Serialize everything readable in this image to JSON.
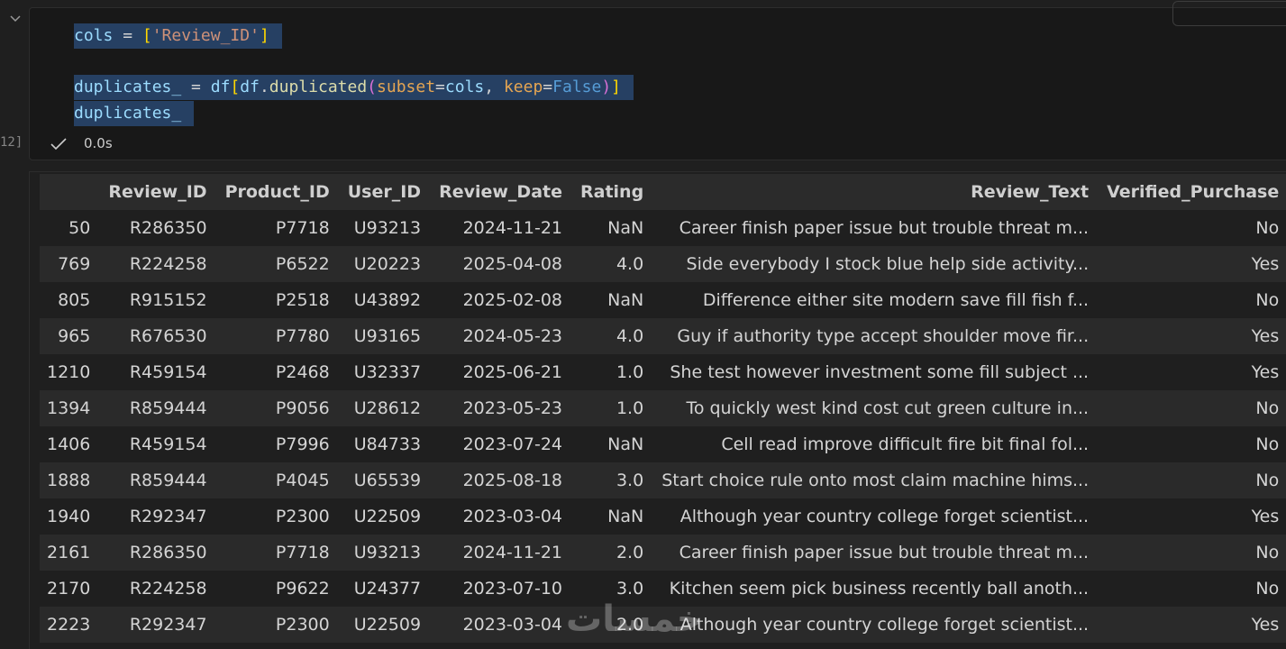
{
  "cell": {
    "execution_count": "12]",
    "duration": "0.0s",
    "code_lines": [
      [
        {
          "text": "cols",
          "color": "#9cdcfe"
        },
        {
          "text": " = ",
          "color": "#d4d4d4"
        },
        {
          "text": "[",
          "color": "#ffd700"
        },
        {
          "text": "'Review_ID'",
          "color": "#ce9178"
        },
        {
          "text": "]",
          "color": "#ffd700"
        }
      ],
      [],
      [
        {
          "text": "duplicates_",
          "color": "#9cdcfe"
        },
        {
          "text": " = ",
          "color": "#d4d4d4"
        },
        {
          "text": "df",
          "color": "#9cdcfe"
        },
        {
          "text": "[",
          "color": "#ffd700"
        },
        {
          "text": "df",
          "color": "#9cdcfe"
        },
        {
          "text": ".",
          "color": "#d4d4d4"
        },
        {
          "text": "duplicated",
          "color": "#dcdcaa"
        },
        {
          "text": "(",
          "color": "#da70d6"
        },
        {
          "text": "subset",
          "color": "#e5a552"
        },
        {
          "text": "=",
          "color": "#d4d4d4"
        },
        {
          "text": "cols",
          "color": "#9cdcfe"
        },
        {
          "text": ", ",
          "color": "#d4d4d4"
        },
        {
          "text": "keep",
          "color": "#e5a552"
        },
        {
          "text": "=",
          "color": "#d4d4d4"
        },
        {
          "text": "False",
          "color": "#569cd6"
        },
        {
          "text": ")",
          "color": "#da70d6"
        },
        {
          "text": "]",
          "color": "#ffd700"
        }
      ],
      [
        {
          "text": "duplicates_",
          "color": "#9cdcfe"
        }
      ]
    ]
  },
  "table": {
    "header": [
      "",
      "Review_ID",
      "Product_ID",
      "User_ID",
      "Review_Date",
      "Rating",
      "Review_Text",
      "Verified_Purchase"
    ],
    "rows": [
      [
        "50",
        "R286350",
        "P7718",
        "U93213",
        "2024-11-21",
        "NaN",
        "Career finish paper issue but trouble threat m...",
        "No"
      ],
      [
        "769",
        "R224258",
        "P6522",
        "U20223",
        "2025-04-08",
        "4.0",
        "Side everybody I stock blue help side activity...",
        "Yes"
      ],
      [
        "805",
        "R915152",
        "P2518",
        "U43892",
        "2025-02-08",
        "NaN",
        "Difference either site modern save fill fish f...",
        "No"
      ],
      [
        "965",
        "R676530",
        "P7780",
        "U93165",
        "2024-05-23",
        "4.0",
        "Guy if authority type accept shoulder move fir...",
        "Yes"
      ],
      [
        "1210",
        "R459154",
        "P2468",
        "U32337",
        "2025-06-21",
        "1.0",
        "She test however investment some fill subject ...",
        "Yes"
      ],
      [
        "1394",
        "R859444",
        "P9056",
        "U28612",
        "2023-05-23",
        "1.0",
        "To quickly west kind cost cut green culture in...",
        "No"
      ],
      [
        "1406",
        "R459154",
        "P7996",
        "U84733",
        "2023-07-24",
        "NaN",
        "Cell read improve difficult fire bit final fol...",
        "No"
      ],
      [
        "1888",
        "R859444",
        "P4045",
        "U65539",
        "2025-08-18",
        "3.0",
        "Start choice rule onto most claim machine hims...",
        "No"
      ],
      [
        "1940",
        "R292347",
        "P2300",
        "U22509",
        "2023-03-04",
        "NaN",
        "Although year country college forget scientist...",
        "Yes"
      ],
      [
        "2161",
        "R286350",
        "P7718",
        "U93213",
        "2024-11-21",
        "2.0",
        "Career finish paper issue but trouble threat m...",
        "No"
      ],
      [
        "2170",
        "R224258",
        "P9622",
        "U24377",
        "2023-07-10",
        "3.0",
        "Kitchen seem pick business recently ball anoth...",
        "No"
      ],
      [
        "2223",
        "R292347",
        "P2300",
        "U22509",
        "2023-03-04",
        "2.0",
        "Although year country college forget scientist...",
        "Yes"
      ]
    ]
  },
  "watermark": "خمسات"
}
